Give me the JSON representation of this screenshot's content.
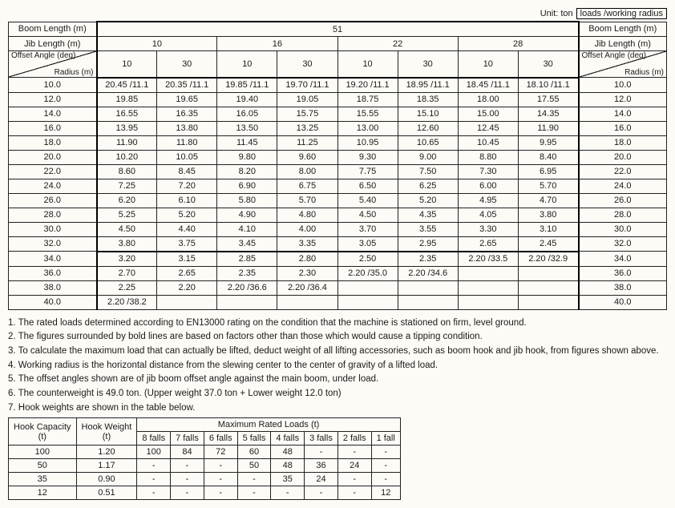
{
  "unit_label": "Unit: ton",
  "unit_box": "loads /working radius",
  "header": {
    "boom_length": "Boom Length (m)",
    "jib_length": "Jib Length (m)",
    "offset_angle": "Offset Angle (deg)",
    "radius": "Radius (m)",
    "boom_value": "51",
    "jib_values": [
      "10",
      "16",
      "22",
      "28"
    ],
    "offset_values": [
      "10",
      "30",
      "10",
      "30",
      "10",
      "30",
      "10",
      "30"
    ]
  },
  "rows": [
    {
      "r": "10.0",
      "c": [
        "20.45 /11.1",
        "20.35 /11.1",
        "19.85 /11.1",
        "19.70 /11.1",
        "19.20 /11.1",
        "18.95 /11.1",
        "18.45 /11.1",
        "18.10 /11.1"
      ]
    },
    {
      "r": "12.0",
      "c": [
        "19.85",
        "19.65",
        "19.40",
        "19.05",
        "18.75",
        "18.35",
        "18.00",
        "17.55"
      ]
    },
    {
      "r": "14.0",
      "c": [
        "16.55",
        "16.35",
        "16.05",
        "15.75",
        "15.55",
        "15.10",
        "15.00",
        "14.35"
      ]
    },
    {
      "r": "16.0",
      "c": [
        "13.95",
        "13.80",
        "13.50",
        "13.25",
        "13.00",
        "12.60",
        "12.45",
        "11.90"
      ]
    },
    {
      "r": "18.0",
      "c": [
        "11.90",
        "11.80",
        "11.45",
        "11.25",
        "10.95",
        "10.65",
        "10.45",
        "9.95"
      ]
    },
    {
      "r": "20.0",
      "c": [
        "10.20",
        "10.05",
        "9.80",
        "9.60",
        "9.30",
        "9.00",
        "8.80",
        "8.40"
      ]
    },
    {
      "r": "22.0",
      "c": [
        "8.60",
        "8.45",
        "8.20",
        "8.00",
        "7.75",
        "7.50",
        "7.30",
        "6.95"
      ]
    },
    {
      "r": "24.0",
      "c": [
        "7.25",
        "7.20",
        "6.90",
        "6.75",
        "6.50",
        "6.25",
        "6.00",
        "5.70"
      ]
    },
    {
      "r": "26.0",
      "c": [
        "6.20",
        "6.10",
        "5.80",
        "5.70",
        "5.40",
        "5.20",
        "4.95",
        "4.70"
      ]
    },
    {
      "r": "28.0",
      "c": [
        "5.25",
        "5.20",
        "4.90",
        "4.80",
        "4.50",
        "4.35",
        "4.05",
        "3.80"
      ]
    },
    {
      "r": "30.0",
      "c": [
        "4.50",
        "4.40",
        "4.10",
        "4.00",
        "3.70",
        "3.55",
        "3.30",
        "3.10"
      ]
    },
    {
      "r": "32.0",
      "c": [
        "3.80",
        "3.75",
        "3.45",
        "3.35",
        "3.05",
        "2.95",
        "2.65",
        "2.45"
      ]
    },
    {
      "r": "34.0",
      "c": [
        "3.20",
        "3.15",
        "2.85",
        "2.80",
        "2.50",
        "2.35",
        "2.20 /33.5",
        "2.20 /32.9"
      ]
    },
    {
      "r": "36.0",
      "c": [
        "2.70",
        "2.65",
        "2.35",
        "2.30",
        "2.20 /35.0",
        "2.20 /34.6",
        "",
        ""
      ]
    },
    {
      "r": "38.0",
      "c": [
        "2.25",
        "2.20",
        "2.20 /36.6",
        "2.20 /36.4",
        "",
        "",
        "",
        ""
      ]
    },
    {
      "r": "40.0",
      "c": [
        "2.20 /38.2",
        "",
        "",
        "",
        "",
        "",
        "",
        ""
      ]
    }
  ],
  "bold_region": {
    "row_start": 0,
    "row_end": 11,
    "col_end": 8
  },
  "notes": [
    "1. The rated loads determined according to EN13000 rating on the condition that the machine is stationed on firm, level ground.",
    "2. The figures surrounded by bold lines are based on factors other than those which would cause a tipping condition.",
    "3. To calculate the maximum load that can actually be lifted, deduct weight of all lifting accessories, such as boom hook and jib hook, from figures shown above.",
    "4. Working radius is the horizontal distance from the slewing center to the center of gravity of a lifted load.",
    "5. The offset angles shown are of jib boom offset angle against the main boom, under load.",
    "6. The counterweight is 49.0 ton. (Upper weight 37.0 ton + Lower weight 12.0 ton)",
    "7. Hook weights are shown in the table below."
  ],
  "hooks": {
    "left_headers": [
      "Hook Capacity\n(t)",
      "Hook Weight\n(t)"
    ],
    "max_label": "Maximum Rated Loads (t)",
    "falls": [
      "8 falls",
      "7 falls",
      "6 falls",
      "5 falls",
      "4 falls",
      "3 falls",
      "2 falls",
      "1 fall"
    ],
    "rows": [
      {
        "cap": "100",
        "wt": "1.20",
        "v": [
          "100",
          "84",
          "72",
          "60",
          "48",
          "-",
          "-",
          "-"
        ]
      },
      {
        "cap": "50",
        "wt": "1.17",
        "v": [
          "-",
          "-",
          "-",
          "50",
          "48",
          "36",
          "24",
          "-"
        ]
      },
      {
        "cap": "35",
        "wt": "0.90",
        "v": [
          "-",
          "-",
          "-",
          "-",
          "35",
          "24",
          "-",
          "-"
        ]
      },
      {
        "cap": "12",
        "wt": "0.51",
        "v": [
          "-",
          "-",
          "-",
          "-",
          "-",
          "-",
          "-",
          "12"
        ]
      }
    ]
  }
}
